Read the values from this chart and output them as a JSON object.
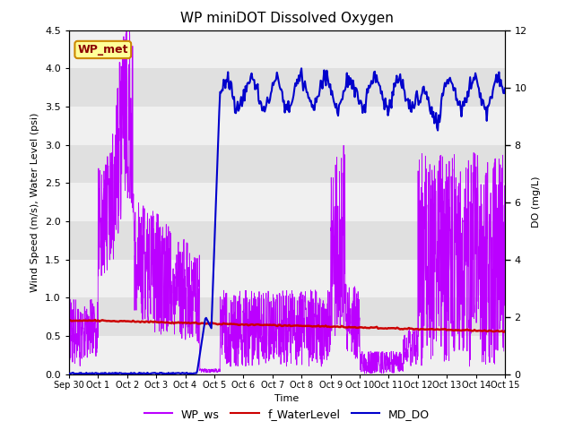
{
  "title": "WP miniDOT Dissolved Oxygen",
  "ylabel_left": "Wind Speed (m/s), Water Level (psi)",
  "ylabel_right": "DO (mg/L)",
  "xlabel": "Time",
  "legend_label": "WP_met",
  "ylim_left": [
    0,
    4.5
  ],
  "ylim_right": [
    0,
    12
  ],
  "yticks_left": [
    0.0,
    0.5,
    1.0,
    1.5,
    2.0,
    2.5,
    3.0,
    3.5,
    4.0,
    4.5
  ],
  "yticks_right": [
    0,
    2,
    4,
    6,
    8,
    10,
    12
  ],
  "plot_bg_color": "#e8e8e8",
  "band_color_light": "#f0f0f0",
  "band_color_dark": "#e0e0e0",
  "line_ws_color": "#bb00ff",
  "line_wl_color": "#cc0000",
  "line_do_color": "#0000cc",
  "x_tick_labels": [
    "Sep 30",
    "Oct 1",
    "Oct 2",
    "Oct 3",
    "Oct 4",
    "Oct 5",
    "Oct 6",
    "Oct 7",
    "Oct 8",
    "Oct 9",
    "Oct 10",
    "Oct 11",
    "Oct 12",
    "Oct 13",
    "Oct 14",
    "Oct 15"
  ],
  "seed": 42
}
